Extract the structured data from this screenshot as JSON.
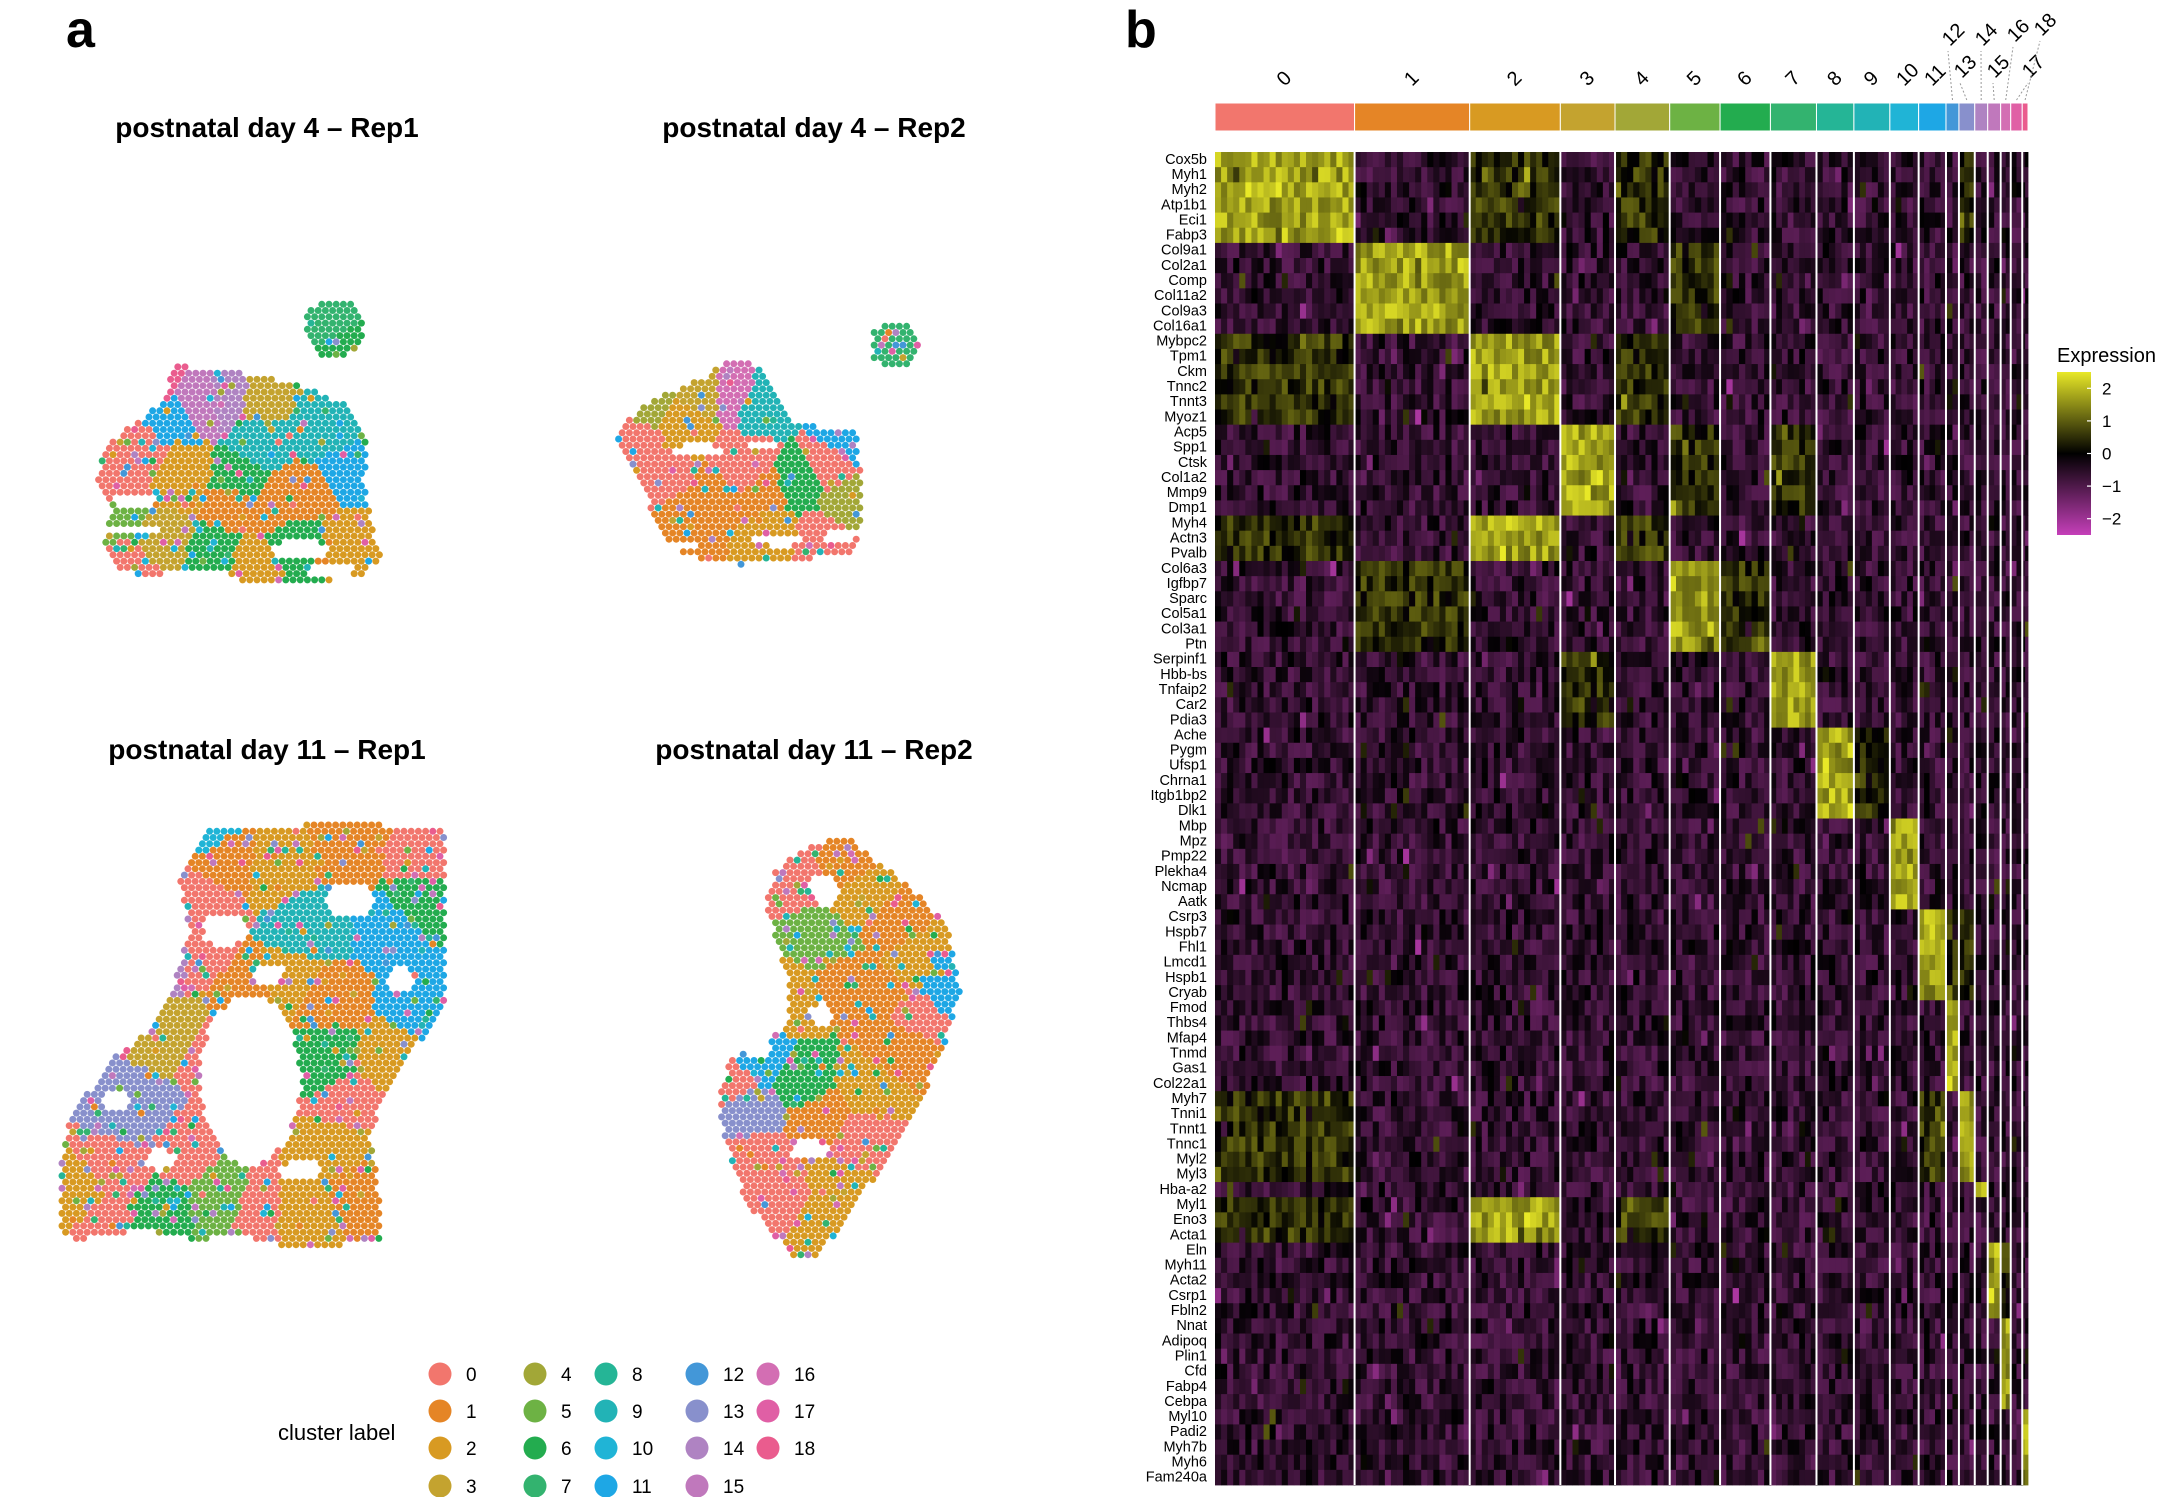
{
  "panels": {
    "a": {
      "letter": "a",
      "subplots": [
        {
          "title": "postnatal day 4 – Rep1"
        },
        {
          "title": "postnatal day 4 – Rep2"
        },
        {
          "title": "postnatal day 11 – Rep1"
        },
        {
          "title": "postnatal day 11 – Rep2"
        }
      ],
      "legend": {
        "title": "cluster label",
        "labels": [
          "0",
          "1",
          "2",
          "3",
          "4",
          "5",
          "6",
          "7",
          "8",
          "9",
          "10",
          "11",
          "12",
          "13",
          "14",
          "15",
          "16",
          "17",
          "18"
        ]
      }
    },
    "b": {
      "letter": "b"
    }
  },
  "cluster_colors": [
    "#F2766D",
    "#E58526",
    "#D89A22",
    "#C4A32F",
    "#A2A737",
    "#6DB244",
    "#23AC4F",
    "#33B36F",
    "#25B596",
    "#22B3B6",
    "#20B4D6",
    "#1EA7E5",
    "#4397D8",
    "#8890CC",
    "#AF83C2",
    "#C078BC",
    "#D36EB3",
    "#E05FA5",
    "#EA5C8E"
  ],
  "chart_data": [
    {
      "type": "scatter",
      "description_source": "spatial spot maps coloured by cluster label",
      "series": [
        {
          "name": "postnatal day 4 – Rep1"
        },
        {
          "name": "postnatal day 4 – Rep2"
        },
        {
          "name": "postnatal day 11 – Rep1"
        },
        {
          "name": "postnatal day 11 – Rep2"
        }
      ],
      "legend_title": "cluster label",
      "legend_labels": [
        "0",
        "1",
        "2",
        "3",
        "4",
        "5",
        "6",
        "7",
        "8",
        "9",
        "10",
        "11",
        "12",
        "13",
        "14",
        "15",
        "16",
        "17",
        "18"
      ],
      "legend_placement": "bottom"
    },
    {
      "type": "heatmap",
      "column_groups": [
        "0",
        "1",
        "2",
        "3",
        "4",
        "5",
        "6",
        "7",
        "8",
        "9",
        "10",
        "11",
        "12",
        "13",
        "14",
        "15",
        "16",
        "17",
        "18"
      ],
      "column_group_widths": [
        97,
        80,
        63,
        38,
        38,
        35,
        35,
        32,
        26,
        25,
        20,
        19,
        9,
        11,
        9,
        9,
        7,
        8,
        4
      ],
      "rows": [
        "Cox5b",
        "Myh1",
        "Myh2",
        "Atp1b1",
        "Eci1",
        "Fabp3",
        "Col9a1",
        "Col2a1",
        "Comp",
        "Col11a2",
        "Col9a3",
        "Col16a1",
        "Mybpc2",
        "Tpm1",
        "Ckm",
        "Tnnc2",
        "Tnnt3",
        "Myoz1",
        "Acp5",
        "Spp1",
        "Ctsk",
        "Col1a2",
        "Mmp9",
        "Dmp1",
        "Myh4",
        "Actn3",
        "Pvalb",
        "Col6a3",
        "Igfbp7",
        "Sparc",
        "Col5a1",
        "Col3a1",
        "Ptn",
        "Serpinf1",
        "Hbb-bs",
        "Tnfaip2",
        "Car2",
        "Pdia3",
        "Ache",
        "Pygm",
        "Ufsp1",
        "Chrna1",
        "Itgb1bp2",
        "Dlk1",
        "Mbp",
        "Mpz",
        "Pmp22",
        "Plekha4",
        "Ncmap",
        "Aatk",
        "Csrp3",
        "Hspb7",
        "Fhl1",
        "Lmcd1",
        "Hspb1",
        "Cryab",
        "Fmod",
        "Thbs4",
        "Mfap4",
        "Tnmd",
        "Gas1",
        "Col22a1",
        "Myh7",
        "Tnni1",
        "Tnnt1",
        "Tnnc1",
        "Myl2",
        "Myl3",
        "Hba-a2",
        "Myl1",
        "Eno3",
        "Acta1",
        "Eln",
        "Myh11",
        "Acta2",
        "Csrp1",
        "Fbln2",
        "Nnat",
        "Adipoq",
        "Plin1",
        "Cfd",
        "Fabp4",
        "Cebpa",
        "Myl10",
        "Padi2",
        "Myh7b",
        "Myh6",
        "Fam240a"
      ],
      "colorbar": {
        "title": "Expression",
        "ticks": [
          2,
          1,
          0,
          -1,
          -2
        ],
        "range": [
          -2.5,
          2.5
        ],
        "colors": [
          "#C53FB9",
          "#000000",
          "#E8E827"
        ]
      }
    }
  ]
}
